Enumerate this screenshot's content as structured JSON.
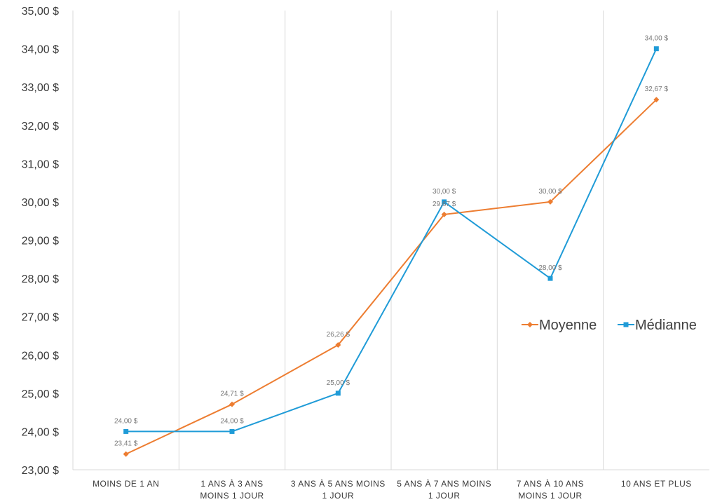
{
  "chart_data": {
    "type": "line",
    "categories": [
      [
        "MOINS DE 1 AN"
      ],
      [
        "1 ANS À 3 ANS",
        "MOINS 1 JOUR"
      ],
      [
        "3 ANS À 5 ANS MOINS",
        "1 JOUR"
      ],
      [
        "5 ANS À 7 ANS MOINS",
        "1 JOUR"
      ],
      [
        "7 ANS À 10 ANS",
        "MOINS 1 JOUR"
      ],
      [
        "10 ANS ET PLUS"
      ]
    ],
    "series": [
      {
        "name": "Moyenne",
        "values": [
          23.41,
          24.71,
          26.26,
          29.67,
          30.0,
          32.67
        ],
        "labels": [
          "23,41 $",
          "24,71 $",
          "26,26 $",
          "29,67 $",
          "30,00 $",
          "32,67 $"
        ],
        "color": "#ED7D31",
        "marker": "diamond"
      },
      {
        "name": "Médianne",
        "values": [
          24.0,
          24.0,
          25.0,
          30.0,
          28.0,
          34.0
        ],
        "labels": [
          "24,00 $",
          "24,00 $",
          "25,00 $",
          "30,00 $",
          "28,00 $",
          "34,00 $"
        ],
        "color": "#1F9BD7",
        "marker": "square"
      }
    ],
    "ylim": [
      23,
      35
    ],
    "yticks": [
      {
        "value": 23,
        "label": "23,00 $"
      },
      {
        "value": 24,
        "label": "24,00 $"
      },
      {
        "value": 25,
        "label": "25,00 $"
      },
      {
        "value": 26,
        "label": "26,00 $"
      },
      {
        "value": 27,
        "label": "27,00 $"
      },
      {
        "value": 28,
        "label": "28,00 $"
      },
      {
        "value": 29,
        "label": "29,00 $"
      },
      {
        "value": 30,
        "label": "30,00 $"
      },
      {
        "value": 31,
        "label": "31,00 $"
      },
      {
        "value": 32,
        "label": "32,00 $"
      },
      {
        "value": 33,
        "label": "33,00 $"
      },
      {
        "value": 34,
        "label": "34,00 $"
      },
      {
        "value": 35,
        "label": "35,00 $"
      }
    ],
    "grid": "vertical",
    "legend_position": "right",
    "title": "",
    "xlabel": "",
    "ylabel": ""
  }
}
